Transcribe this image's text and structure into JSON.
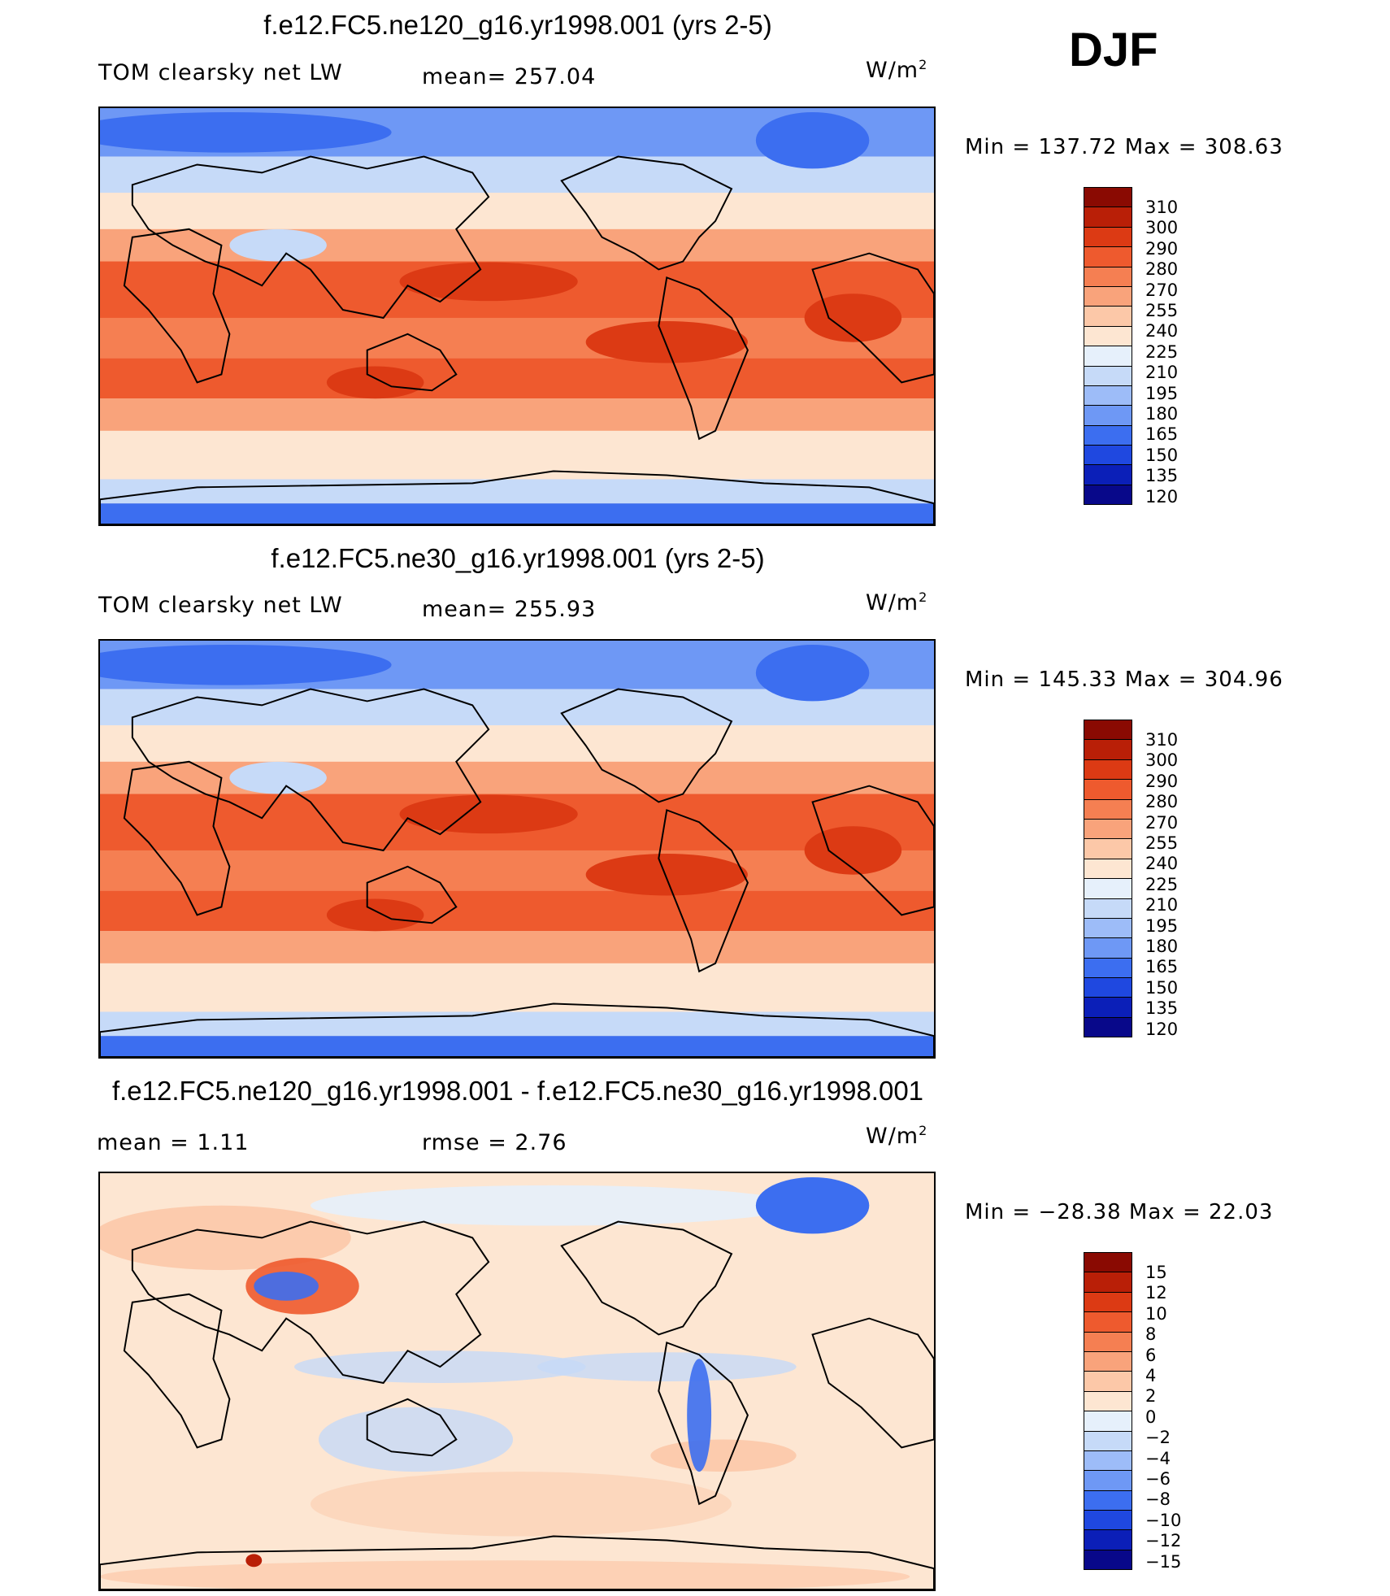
{
  "season": "DJF",
  "colors": {
    "abs": [
      "#08088a",
      "#0b1fb8",
      "#1f48e0",
      "#3c6ef0",
      "#6e98f5",
      "#9dbcf8",
      "#c6daf8",
      "#e6f0fb",
      "#fde6d2",
      "#fcc8a8",
      "#f9a37b",
      "#f57f52",
      "#ee5a2e",
      "#dc3a14",
      "#b91f07",
      "#8a0a02"
    ],
    "diff": [
      "#08088a",
      "#0b1fb8",
      "#1f48e0",
      "#3c6ef0",
      "#6e98f5",
      "#9dbcf8",
      "#c6daf8",
      "#e6f0fb",
      "#fde6d2",
      "#fcc8a8",
      "#f9a37b",
      "#f57f52",
      "#ee5a2e",
      "#dc3a14",
      "#b91f07",
      "#8a0a02"
    ]
  },
  "panels": [
    {
      "title": "f.e12.FC5.ne120_g16.yr1998.001 (yrs 2-5)",
      "variable": "TOM clearsky net LW",
      "stat1": "mean=  257.04",
      "stat2": "",
      "units": "W/m",
      "units_sup": "2",
      "minmax": "Min  =  137.72  Max  =  308.63"
    },
    {
      "title": "f.e12.FC5.ne30_g16.yr1998.001 (yrs 2-5)",
      "variable": "TOM clearsky net LW",
      "stat1": "mean=  255.93",
      "stat2": "",
      "units": "W/m",
      "units_sup": "2",
      "minmax": "Min  =  145.33  Max  =  304.96"
    },
    {
      "title": "f.e12.FC5.ne120_g16.yr1998.001 - f.e12.FC5.ne30_g16.yr1998.001",
      "variable": "mean  =      1.11",
      "stat1": "rmse  =      2.76",
      "stat2": "",
      "units": "W/m",
      "units_sup": "2",
      "minmax": "Min  =  −28.38  Max  =    22.03"
    }
  ],
  "chart_data": [
    {
      "type": "heatmap",
      "title": "f.e12.FC5.ne120_g16.yr1998.001 (yrs 2-5)",
      "variable": "TOM clearsky net LW",
      "units": "W/m2",
      "mean": 257.04,
      "min": 137.72,
      "max": 308.63,
      "colorbar_levels": [
        310,
        300,
        290,
        280,
        270,
        255,
        240,
        225,
        210,
        195,
        180,
        165,
        150,
        135,
        120
      ]
    },
    {
      "type": "heatmap",
      "title": "f.e12.FC5.ne30_g16.yr1998.001 (yrs 2-5)",
      "variable": "TOM clearsky net LW",
      "units": "W/m2",
      "mean": 255.93,
      "min": 145.33,
      "max": 304.96,
      "colorbar_levels": [
        310,
        300,
        290,
        280,
        270,
        255,
        240,
        225,
        210,
        195,
        180,
        165,
        150,
        135,
        120
      ]
    },
    {
      "type": "heatmap",
      "title": "f.e12.FC5.ne120_g16.yr1998.001 - f.e12.FC5.ne30_g16.yr1998.001",
      "units": "W/m2",
      "mean": 1.11,
      "rmse": 2.76,
      "min": -28.38,
      "max": 22.03,
      "colorbar_levels": [
        15,
        12,
        10,
        8,
        6,
        4,
        2,
        0,
        -2,
        -4,
        -6,
        -8,
        -10,
        -12,
        -15
      ]
    }
  ],
  "colorbar_labels": {
    "abs": [
      "310",
      "300",
      "290",
      "280",
      "270",
      "255",
      "240",
      "225",
      "210",
      "195",
      "180",
      "165",
      "150",
      "135",
      "120"
    ],
    "diff": [
      "15",
      "12",
      "10",
      "8",
      "6",
      "4",
      "2",
      "0",
      "−2",
      "−4",
      "−6",
      "−8",
      "−10",
      "−12",
      "−15"
    ]
  }
}
